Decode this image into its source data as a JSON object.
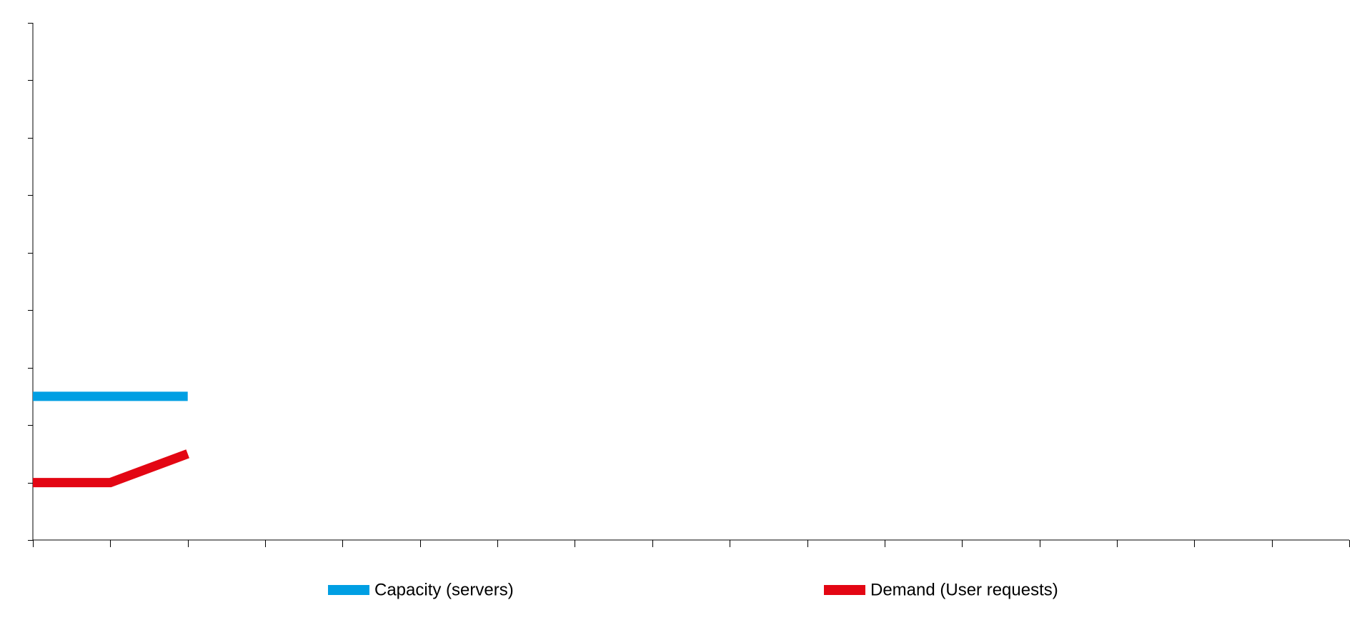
{
  "chart_data": {
    "type": "line",
    "title": "",
    "xlabel": "",
    "ylabel": "",
    "x": [
      0,
      1,
      2,
      3,
      4,
      5,
      6,
      7,
      8,
      9,
      10,
      11,
      12,
      13,
      14,
      15,
      16,
      17
    ],
    "xlim": [
      0,
      17
    ],
    "ylim": [
      0,
      9
    ],
    "y_ticks": 9,
    "x_ticks": 17,
    "tick_labels_visible": false,
    "grid": false,
    "legend_position": "bottom",
    "series": [
      {
        "name": "Capacity (servers)",
        "color": "#009FE3",
        "x": [
          0,
          1,
          2
        ],
        "values": [
          2.5,
          2.5,
          2.5
        ]
      },
      {
        "name": "Demand (User requests)",
        "color": "#E30613",
        "x": [
          0,
          1,
          2
        ],
        "values": [
          1,
          1,
          1.5
        ]
      }
    ]
  }
}
